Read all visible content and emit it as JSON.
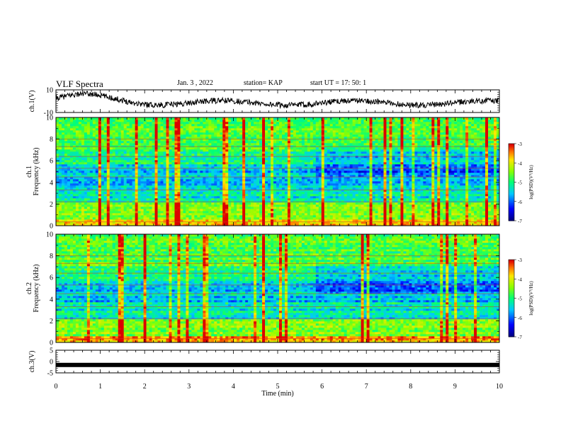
{
  "header": {
    "title": "VLF Spectra",
    "date": "Jan. 3 , 2022",
    "station": "station= KAP",
    "start": "start UT = 17: 50: 1"
  },
  "chart_data": [
    {
      "type": "line",
      "panel": "ch1-waveform",
      "ylabel": "ch.1(V)",
      "ylim": [
        -10,
        10
      ],
      "ytick_labels": [
        "10",
        "-10"
      ],
      "xlim": [
        0,
        10
      ]
    },
    {
      "type": "heatmap",
      "panel": "ch1-spectrogram",
      "ylabel": "ch.1\nFrequency (kHz)",
      "ylim": [
        0,
        10
      ],
      "ytick_labels": [
        "0",
        "2",
        "4",
        "6",
        "8",
        "10"
      ],
      "xlim": [
        0,
        10
      ],
      "colorbar": {
        "label": "log(PSD)(V²/Hz)",
        "range": [
          -7,
          -3
        ],
        "tick_labels": [
          "-3",
          "-4",
          "-5",
          "-6",
          "-7"
        ]
      }
    },
    {
      "type": "heatmap",
      "panel": "ch2-spectrogram",
      "ylabel": "ch.2\nFrequency (kHz)",
      "ylim": [
        0,
        10
      ],
      "ytick_labels": [
        "0",
        "2",
        "4",
        "6",
        "8",
        "10"
      ],
      "xlim": [
        0,
        10
      ],
      "colorbar": {
        "label": "log(PSD)(V²/Hz)",
        "range": [
          -7,
          -3
        ],
        "tick_labels": [
          "-3",
          "-4",
          "-5",
          "-6",
          "-7"
        ]
      }
    },
    {
      "type": "line",
      "panel": "ch3-waveform",
      "ylabel": "ch.3(V)",
      "ylim": [
        -5,
        5
      ],
      "ytick_labels": [
        "5",
        "0",
        "-5"
      ],
      "xlim": [
        0,
        10
      ],
      "xlabel": "Time (min)",
      "xtick_labels": [
        "0",
        "1",
        "2",
        "3",
        "4",
        "5",
        "6",
        "7",
        "8",
        "9",
        "10"
      ]
    }
  ]
}
